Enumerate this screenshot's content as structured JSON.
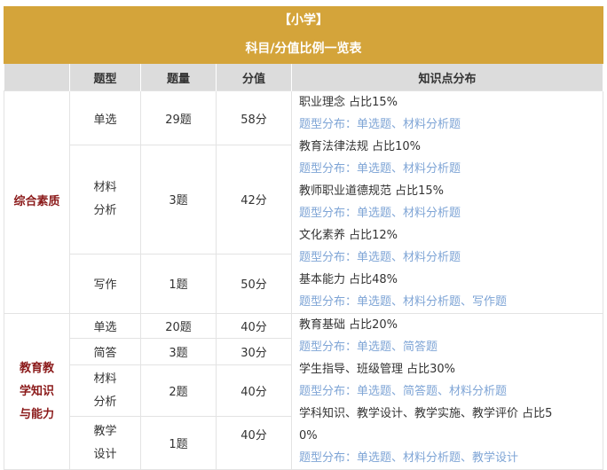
{
  "title": {
    "line1": "【小学】",
    "line2": "科目/分值比例一览表"
  },
  "headers": [
    "",
    "题型",
    "题量",
    "分值",
    "知识点分布"
  ],
  "sections": [
    {
      "name": "综合素质",
      "rows": [
        {
          "type": "单选",
          "count": "29题",
          "score": "58分"
        },
        {
          "type": "材料\n分析",
          "type_lines": [
            "材料",
            "分析"
          ],
          "count": "3题",
          "score": "42分"
        },
        {
          "type": "写作",
          "count": "1题",
          "score": "50分"
        }
      ],
      "knowledge": [
        "职业理念 占比15%",
        "题型分布：单选题、材料分析题",
        "教育法律法规 占比10%",
        "题型分布：单选题、材料分析题",
        "教师职业道德规范 占比15%",
        "题型分布：单选题、材料分析题",
        "文化素养 占比12%",
        "题型分布：单选题、材料分析题",
        "基本能力 占比48%",
        "题型分布：单选题、材料分析题、写作题"
      ]
    },
    {
      "name": "教育教学知识与能力",
      "name_lines": [
        "教育教",
        "学知识",
        "与能力"
      ],
      "rows": [
        {
          "type": "单选",
          "count": "20题",
          "score": "40分"
        },
        {
          "type": "简答",
          "count": "3题",
          "score": "30分"
        },
        {
          "type_lines": [
            "材料",
            "分析"
          ],
          "count": "2题",
          "score": "40分"
        },
        {
          "type_lines": [
            "教学",
            "设计"
          ],
          "count": "1题",
          "score": "40分"
        }
      ],
      "knowledge": [
        "教育基础 占比20%",
        "题型分布：单选题、简答题",
        "学生指导、班级管理 占比30%",
        "题型分布：单选题、简答题、材料分析题",
        "学科知识、教学设计、教学实施、教学评价 占比5",
        "0%",
        "题型分布：单选题、材料分析题、教学设计"
      ]
    }
  ]
}
